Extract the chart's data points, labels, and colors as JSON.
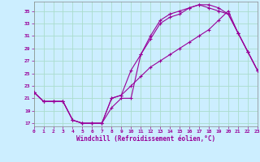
{
  "xlabel": "Windchill (Refroidissement éolien,°C)",
  "background_color": "#cceeff",
  "line_color": "#990099",
  "grid_color": "#aaddcc",
  "xlim": [
    0,
    23
  ],
  "ylim": [
    16.5,
    36.5
  ],
  "yticks": [
    17,
    19,
    21,
    23,
    25,
    27,
    29,
    31,
    33,
    35
  ],
  "xticks": [
    0,
    1,
    2,
    3,
    4,
    5,
    6,
    7,
    8,
    9,
    10,
    11,
    12,
    13,
    14,
    15,
    16,
    17,
    18,
    19,
    20,
    21,
    22,
    23
  ],
  "curve1_x": [
    0,
    1,
    2,
    3,
    4,
    5,
    6,
    7,
    8,
    9,
    10,
    11,
    12,
    13,
    14,
    15,
    16,
    17,
    18,
    19,
    20,
    21,
    22,
    23
  ],
  "curve1_y": [
    22,
    20.5,
    20.5,
    20.5,
    17.5,
    17,
    17,
    17,
    19.5,
    21,
    21,
    28,
    30.5,
    33,
    34,
    34.5,
    35.5,
    36,
    36,
    35.5,
    34.5,
    31.5,
    28.5,
    25.5
  ],
  "curve2_x": [
    0,
    1,
    2,
    3,
    4,
    5,
    6,
    7,
    8,
    9,
    10,
    11,
    12,
    13,
    14,
    15,
    16,
    17,
    18,
    19,
    20,
    21,
    22,
    23
  ],
  "curve2_y": [
    22,
    20.5,
    20.5,
    20.5,
    17.5,
    17,
    17,
    17,
    21,
    21.5,
    25.5,
    28,
    31,
    33.5,
    34.5,
    35,
    35.5,
    36,
    35.5,
    35,
    34.5,
    31.5,
    28.5,
    25.5
  ],
  "curve3_x": [
    0,
    1,
    2,
    3,
    4,
    5,
    6,
    7,
    8,
    9,
    10,
    11,
    12,
    13,
    14,
    15,
    16,
    17,
    18,
    19,
    20,
    21,
    22,
    23
  ],
  "curve3_y": [
    22,
    20.5,
    20.5,
    20.5,
    17.5,
    17,
    17,
    17,
    21,
    21.5,
    23,
    24.5,
    26,
    27,
    28,
    29,
    30,
    31,
    32,
    33.5,
    35,
    31.5,
    28.5,
    25.5
  ]
}
